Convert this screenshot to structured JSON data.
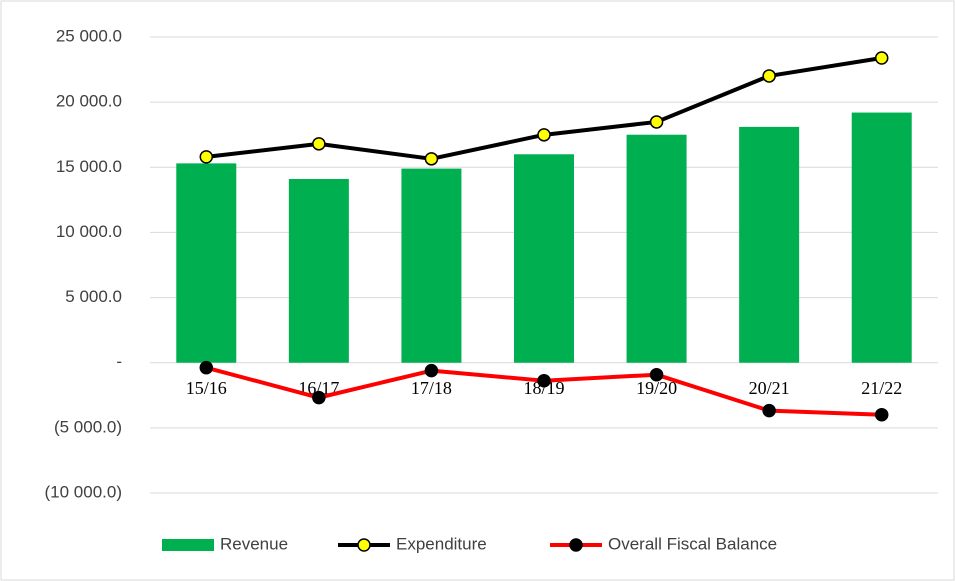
{
  "chart_data": {
    "type": "combo",
    "categories": [
      "15/16",
      "16/17",
      "17/18",
      "18/19",
      "19/20",
      "20/21",
      "21/22"
    ],
    "series": [
      {
        "name": "Revenue",
        "type": "bar",
        "color": "#00b050",
        "values": [
          15300,
          14100,
          14900,
          16000,
          17500,
          18100,
          19200
        ]
      },
      {
        "name": "Expenditure",
        "type": "line",
        "color": "#000000",
        "marker_color": "#ffff00",
        "values": [
          15800,
          16800,
          15650,
          17490,
          18480,
          22010,
          23390
        ]
      },
      {
        "name": "Overall Fiscal Balance",
        "type": "line",
        "color": "#ff0000",
        "marker_color": "#000000",
        "values": [
          -380,
          -2680,
          -610,
          -1380,
          -920,
          -3680,
          -3990
        ]
      }
    ],
    "ylim": [
      -10000,
      25000
    ],
    "yticks": [
      {
        "value": -10000,
        "label": "(10 000.0)"
      },
      {
        "value": -5000,
        "label": "(5 000.0)"
      },
      {
        "value": 0,
        "label": "-"
      },
      {
        "value": 5000,
        "label": "5 000.0"
      },
      {
        "value": 10000,
        "label": "10 000.0"
      },
      {
        "value": 15000,
        "label": "15 000.0"
      },
      {
        "value": 20000,
        "label": "20 000.0"
      },
      {
        "value": 25000,
        "label": "25 000.0"
      }
    ],
    "grid": true,
    "legend": "bottom"
  }
}
